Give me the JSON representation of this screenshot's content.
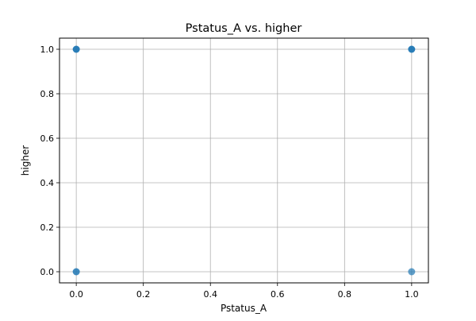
{
  "chart_data": {
    "type": "scatter",
    "title": "Pstatus_A vs. higher",
    "xlabel": "Pstatus_A",
    "ylabel": "higher",
    "xlim": [
      -0.05,
      1.05
    ],
    "ylim": [
      -0.05,
      1.05
    ],
    "xticks": [
      0.0,
      0.2,
      0.4,
      0.6,
      0.8,
      1.0
    ],
    "xtick_labels": [
      "0.0",
      "0.2",
      "0.4",
      "0.6",
      "0.8",
      "1.0"
    ],
    "yticks": [
      0.0,
      0.2,
      0.4,
      0.6,
      0.8,
      1.0
    ],
    "ytick_labels": [
      "0.0",
      "0.2",
      "0.4",
      "0.6",
      "0.8",
      "1.0"
    ],
    "grid": true,
    "points": [
      {
        "x": 0,
        "y": 1,
        "density": "high"
      },
      {
        "x": 1,
        "y": 1,
        "density": "high"
      },
      {
        "x": 0,
        "y": 0,
        "density": "medium"
      },
      {
        "x": 1,
        "y": 0,
        "density": "low"
      }
    ],
    "colors": {
      "point": "#1f77b4",
      "grid": "#b0b0b0",
      "axis": "#000000"
    }
  }
}
